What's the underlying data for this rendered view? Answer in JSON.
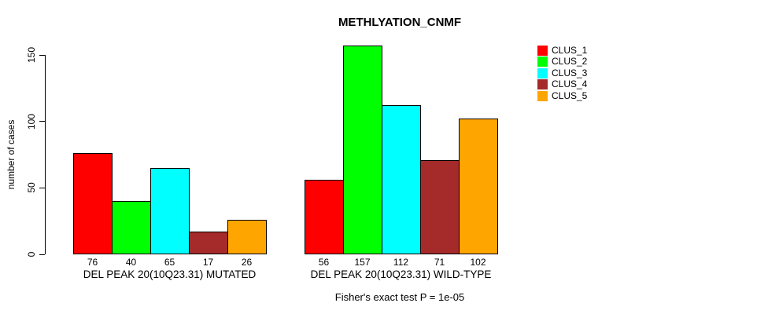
{
  "chart_data": {
    "type": "bar",
    "title": "METHLYATION_CNMF",
    "xlabel": "",
    "ylabel": "number of cases",
    "ylim": [
      0,
      150
    ],
    "yticks": [
      0,
      50,
      100,
      150
    ],
    "grid": false,
    "legend_position": "top-right",
    "bar_borders": "black",
    "categories": [
      "DEL PEAK 20(10Q23.31) MUTATED",
      "DEL PEAK 20(10Q23.31) WILD-TYPE"
    ],
    "groups": [
      {
        "label": "DEL PEAK 20(10Q23.31) MUTATED",
        "values": [
          76,
          40,
          65,
          17,
          26
        ]
      },
      {
        "label": "DEL PEAK 20(10Q23.31) WILD-TYPE",
        "values": [
          56,
          157,
          112,
          71,
          102
        ]
      }
    ],
    "series": [
      {
        "name": "CLUS_1",
        "color": "#FF0000",
        "values": [
          76,
          56
        ]
      },
      {
        "name": "CLUS_2",
        "color": "#00FF00",
        "values": [
          40,
          157
        ]
      },
      {
        "name": "CLUS_3",
        "color": "#00FFFF",
        "values": [
          65,
          112
        ]
      },
      {
        "name": "CLUS_4",
        "color": "#A52A2A",
        "values": [
          17,
          71
        ]
      },
      {
        "name": "CLUS_5",
        "color": "#FFA500",
        "values": [
          26,
          102
        ]
      }
    ],
    "annotation": "Fisher's exact test P = 1e-05"
  }
}
